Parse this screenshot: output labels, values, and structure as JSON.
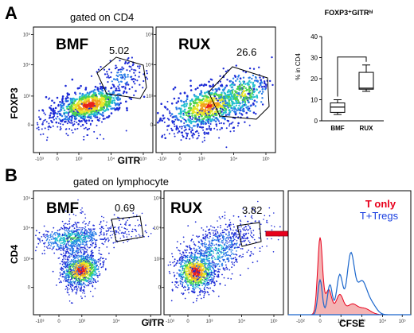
{
  "panel_a": {
    "label": "A",
    "gate_title": "gated on CD4",
    "y_axis_label": "FOXP3",
    "x_axis_label": "GITR",
    "plots": [
      {
        "name": "BMF",
        "percent": "5.02"
      },
      {
        "name": "RUX",
        "percent": "26.6"
      }
    ]
  },
  "panel_b": {
    "label": "B",
    "gate_title": "gated on lymphocyte",
    "y_axis_label": "CD4",
    "x_axis_label": "GITR",
    "plots": [
      {
        "name": "BMF",
        "percent": "0.69"
      },
      {
        "name": "RUX",
        "percent": "3.82"
      }
    ],
    "histogram": {
      "x_axis_label": "CFSE",
      "legend": [
        "T only",
        "T+Tregs"
      ],
      "colors": {
        "t_only": "#e8001c",
        "t_tregs": "#1a66cc",
        "fill": "#f4b4b4"
      }
    }
  },
  "flow_ticks": {
    "x": [
      "-10³",
      "0",
      "10³",
      "10⁴",
      "10⁵"
    ],
    "y": [
      "0",
      "10³",
      "10⁴",
      "10⁵"
    ]
  },
  "cfse_ticks": [
    "-10²",
    "0",
    "10²",
    "10³",
    "10⁴",
    "10⁵"
  ],
  "chart_data": {
    "type": "box",
    "title": "FOXP3⁺GITRʰⁱ",
    "ylabel": "% in CD4",
    "ylim": [
      0,
      40
    ],
    "yticks": [
      "0",
      "10",
      "20",
      "30",
      "40"
    ],
    "categories": [
      "BMF",
      "RUX"
    ],
    "boxes": [
      {
        "name": "BMF",
        "min": 3,
        "q1": 4,
        "median": 6.5,
        "q3": 8.5,
        "max": 10
      },
      {
        "name": "RUX",
        "min": 14,
        "q1": 15,
        "median": 15.5,
        "q3": 23,
        "max": 26.5
      }
    ]
  }
}
